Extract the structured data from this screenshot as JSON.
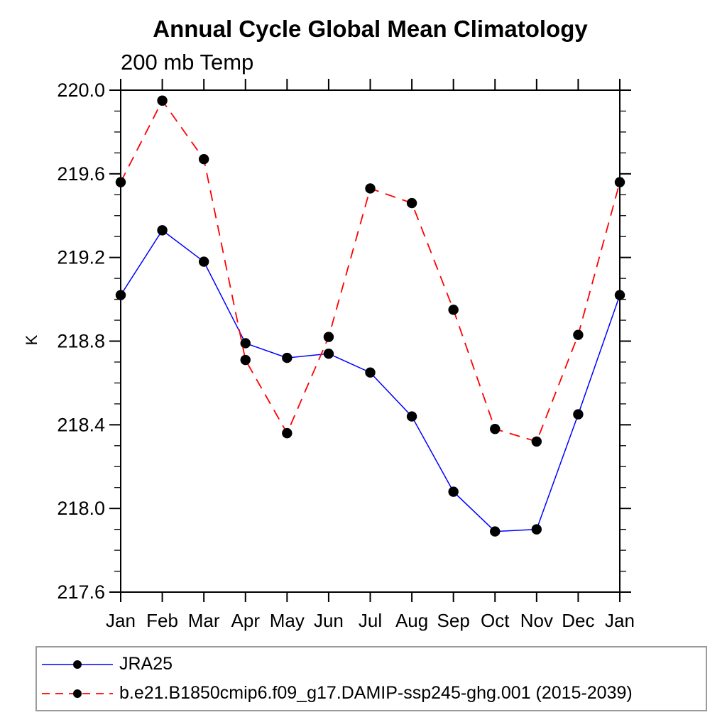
{
  "chart_data": {
    "type": "line",
    "title": "Annual Cycle Global Mean Climatology",
    "subtitle": "200 mb Temp",
    "ylabel": "K",
    "xlabel": "",
    "categories": [
      "Jan",
      "Feb",
      "Mar",
      "Apr",
      "May",
      "Jun",
      "Jul",
      "Aug",
      "Sep",
      "Oct",
      "Nov",
      "Dec",
      "Jan"
    ],
    "ylim": [
      217.6,
      220.0
    ],
    "ytick_labels": [
      "220.0",
      "219.6",
      "219.2",
      "218.8",
      "218.4",
      "218.0",
      "217.6"
    ],
    "ytick_major_values": [
      220.0,
      219.6,
      219.2,
      218.8,
      218.4,
      218.0,
      217.6
    ],
    "ytick_minor_step": 0.1,
    "grid": false,
    "legend_position": "bottom",
    "marker_color": "#000000",
    "axis_color": "#000000",
    "series": [
      {
        "name": "JRA25",
        "color": "#0000ff",
        "style": "solid",
        "marker": "circle",
        "values": [
          219.02,
          219.33,
          219.18,
          218.79,
          218.72,
          218.74,
          218.65,
          218.44,
          218.08,
          217.89,
          217.9,
          218.45,
          219.02
        ]
      },
      {
        "name": "b.e21.B1850cmip6.f09_g17.DAMIP-ssp245-ghg.001 (2015-2039)",
        "color": "#ff0000",
        "style": "dashed",
        "marker": "circle",
        "values": [
          219.56,
          219.95,
          219.67,
          218.71,
          218.36,
          218.82,
          219.53,
          219.46,
          218.95,
          218.38,
          218.32,
          218.83,
          219.56
        ]
      }
    ]
  }
}
